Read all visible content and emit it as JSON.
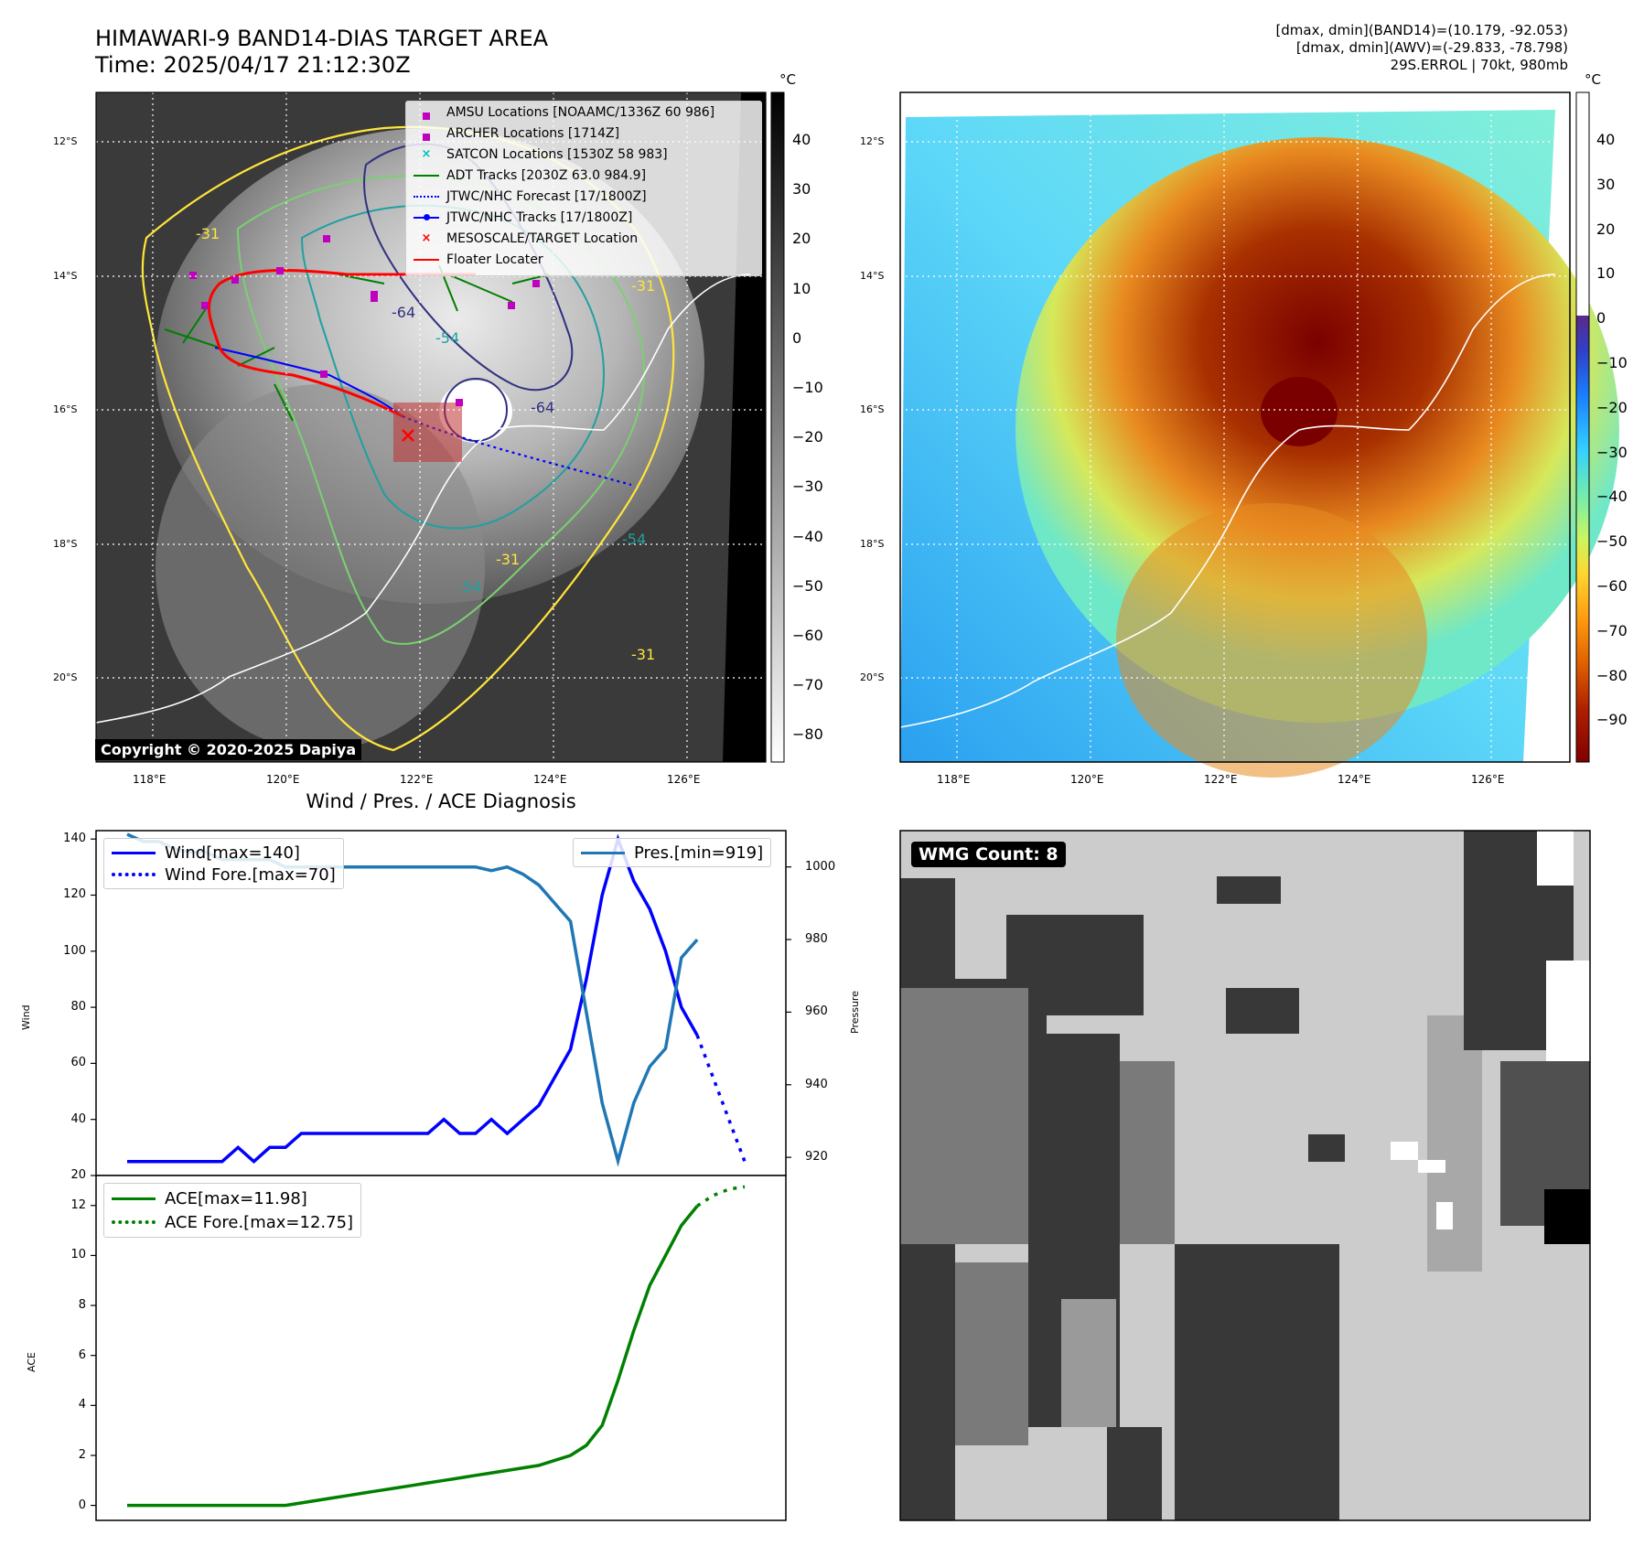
{
  "header": {
    "title_line1": "HIMAWARI-9 BAND14-DIAS TARGET AREA",
    "title_line2": "Time: 2025/04/17 21:12:30Z",
    "info_line1": "[dmax, dmin](BAND14)=(10.179, -92.053)",
    "info_line2": "[dmax, dmin](AWV)=(-29.833, -78.798)",
    "info_line3": "29S.ERROL | 70kt, 980mb"
  },
  "map": {
    "lat_labels": [
      "12°S",
      "14°S",
      "16°S",
      "18°S",
      "20°S"
    ],
    "lon_labels": [
      "118°E",
      "120°E",
      "122°E",
      "124°E",
      "126°E"
    ],
    "copyright": "Copyright © 2020-2025 Dapiya",
    "contour_labels": [
      "-31",
      "-31",
      "-64",
      "-54",
      "-64",
      "-31",
      "-54",
      "-54",
      "-31"
    ],
    "legend": [
      {
        "label": "AMSU Locations [NOAAMC/1336Z 60 986]",
        "marker": "square",
        "color": "#bf00bf"
      },
      {
        "label": "ARCHER Locations [1714Z]",
        "marker": "square",
        "color": "#bf00bf"
      },
      {
        "label": "SATCON Locations [1530Z 58 983]",
        "marker": "x",
        "color": "#00bfbf"
      },
      {
        "label": "ADT Tracks [2030Z 63.0 984.9]",
        "marker": "line",
        "color": "#008000"
      },
      {
        "label": "JTWC/NHC Forecast [17/1800Z]",
        "marker": "dotted",
        "color": "#0000ff"
      },
      {
        "label": "JTWC/NHC Tracks [17/1800Z]",
        "marker": "line-dot",
        "color": "#0000ff"
      },
      {
        "label": "MESOSCALE/TARGET Location",
        "marker": "x",
        "color": "#ff0000"
      },
      {
        "label": "Floater Locater",
        "marker": "line",
        "color": "#ff0000"
      }
    ]
  },
  "colorbar_gray": {
    "unit": "°C",
    "ticks": [
      "40",
      "30",
      "20",
      "10",
      "0",
      "−10",
      "−20",
      "−30",
      "−40",
      "−50",
      "−60",
      "−70",
      "−80"
    ]
  },
  "colorbar_color": {
    "unit": "°C",
    "ticks": [
      "40",
      "30",
      "20",
      "10",
      "0",
      "−10",
      "−20",
      "−30",
      "−40",
      "−50",
      "−60",
      "−70",
      "−80",
      "−90"
    ]
  },
  "wmg": {
    "label": "WMG Count: 8"
  },
  "chart_data": [
    {
      "type": "line",
      "title": "Wind / Pres. / ACE Diagnosis",
      "ylabel": "Wind",
      "ylabel_right": "Pressure",
      "ylim": [
        20,
        143
      ],
      "ylim_right": [
        915,
        1010
      ],
      "yticks": [
        "140",
        "120",
        "100",
        "80",
        "60",
        "40",
        "20"
      ],
      "yticks_right": [
        "1000",
        "980",
        "960",
        "940",
        "920"
      ],
      "series": [
        {
          "name": "Wind[max=140]",
          "color": "#0000ff",
          "style": "solid",
          "values": [
            25,
            25,
            25,
            25,
            25,
            25,
            25,
            30,
            25,
            30,
            30,
            35,
            35,
            35,
            35,
            35,
            35,
            35,
            35,
            35,
            40,
            35,
            35,
            40,
            35,
            40,
            45,
            55,
            65,
            90,
            120,
            140,
            125,
            115,
            100,
            80,
            70
          ]
        },
        {
          "name": "Wind Fore.[max=70]",
          "color": "#0000ff",
          "style": "dotted",
          "values": [
            70,
            55,
            40,
            25
          ]
        },
        {
          "name": "Pres.[min=919]",
          "color": "#1f77b4",
          "style": "solid",
          "values": [
            1009,
            1007,
            1007,
            1005,
            1004,
            1004,
            1002,
            1002,
            1002,
            1002,
            1000,
            1000,
            1000,
            1000,
            1000,
            1000,
            1000,
            1000,
            1000,
            1000,
            1000,
            1000,
            1000,
            999,
            1000,
            998,
            995,
            990,
            985,
            960,
            935,
            919,
            935,
            945,
            950,
            975,
            980
          ]
        }
      ]
    },
    {
      "type": "line",
      "ylabel": "ACE",
      "ylim": [
        -0.6,
        13.2
      ],
      "yticks": [
        "12",
        "10",
        "8",
        "6",
        "4",
        "2",
        "0"
      ],
      "series": [
        {
          "name": "ACE[max=11.98]",
          "color": "#008000",
          "style": "solid",
          "values": [
            0,
            0,
            0,
            0,
            0,
            0,
            0,
            0,
            0,
            0,
            0,
            0.1,
            0.2,
            0.3,
            0.4,
            0.5,
            0.6,
            0.7,
            0.8,
            0.9,
            1.0,
            1.1,
            1.2,
            1.3,
            1.4,
            1.5,
            1.6,
            1.8,
            2.0,
            2.4,
            3.2,
            5.0,
            7.0,
            8.8,
            10.0,
            11.2,
            11.98
          ]
        },
        {
          "name": "ACE Fore.[max=12.75]",
          "color": "#008000",
          "style": "dotted",
          "values": [
            11.98,
            12.4,
            12.65,
            12.75
          ]
        }
      ]
    }
  ]
}
